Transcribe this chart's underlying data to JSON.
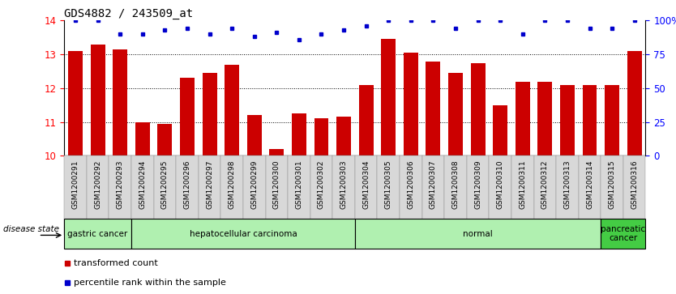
{
  "title": "GDS4882 / 243509_at",
  "samples": [
    "GSM1200291",
    "GSM1200292",
    "GSM1200293",
    "GSM1200294",
    "GSM1200295",
    "GSM1200296",
    "GSM1200297",
    "GSM1200298",
    "GSM1200299",
    "GSM1200300",
    "GSM1200301",
    "GSM1200302",
    "GSM1200303",
    "GSM1200304",
    "GSM1200305",
    "GSM1200306",
    "GSM1200307",
    "GSM1200308",
    "GSM1200309",
    "GSM1200310",
    "GSM1200311",
    "GSM1200312",
    "GSM1200313",
    "GSM1200314",
    "GSM1200315",
    "GSM1200316"
  ],
  "bar_values": [
    13.1,
    13.3,
    13.15,
    11.0,
    10.95,
    12.3,
    12.45,
    12.7,
    11.2,
    10.2,
    11.25,
    11.1,
    11.15,
    12.1,
    13.45,
    13.05,
    12.8,
    12.45,
    12.75,
    11.5,
    12.2,
    12.2,
    12.1,
    12.1,
    12.1,
    13.1
  ],
  "pct_display": [
    100,
    100,
    90,
    90,
    93,
    94,
    90,
    94,
    88,
    91,
    86,
    90,
    93,
    96,
    100,
    100,
    100,
    94,
    100,
    100,
    90,
    100,
    100,
    94,
    94,
    100
  ],
  "bar_color": "#cc0000",
  "dot_color": "#0000cc",
  "ylim_left": [
    10,
    14
  ],
  "yticks_left": [
    10,
    11,
    12,
    13,
    14
  ],
  "ylim_right": [
    0,
    100
  ],
  "yticks_right": [
    0,
    25,
    50,
    75,
    100
  ],
  "ytick_labels_right": [
    "0",
    "25",
    "50",
    "75",
    "100%"
  ],
  "group_boundaries": [
    {
      "start": 0,
      "end": 3,
      "label": "gastric cancer",
      "color": "#b0f0b0"
    },
    {
      "start": 3,
      "end": 13,
      "label": "hepatocellular carcinoma",
      "color": "#b0f0b0"
    },
    {
      "start": 13,
      "end": 24,
      "label": "normal",
      "color": "#b0f0b0"
    },
    {
      "start": 24,
      "end": 26,
      "label": "pancreatic\ncancer",
      "color": "#44cc44"
    }
  ],
  "disease_state_label": "disease state",
  "legend_items": [
    {
      "color": "#cc0000",
      "label": "transformed count"
    },
    {
      "color": "#0000cc",
      "label": "percentile rank within the sample"
    }
  ],
  "plot_bg_color": "#ffffff",
  "title_fontsize": 10,
  "bar_width": 0.65
}
